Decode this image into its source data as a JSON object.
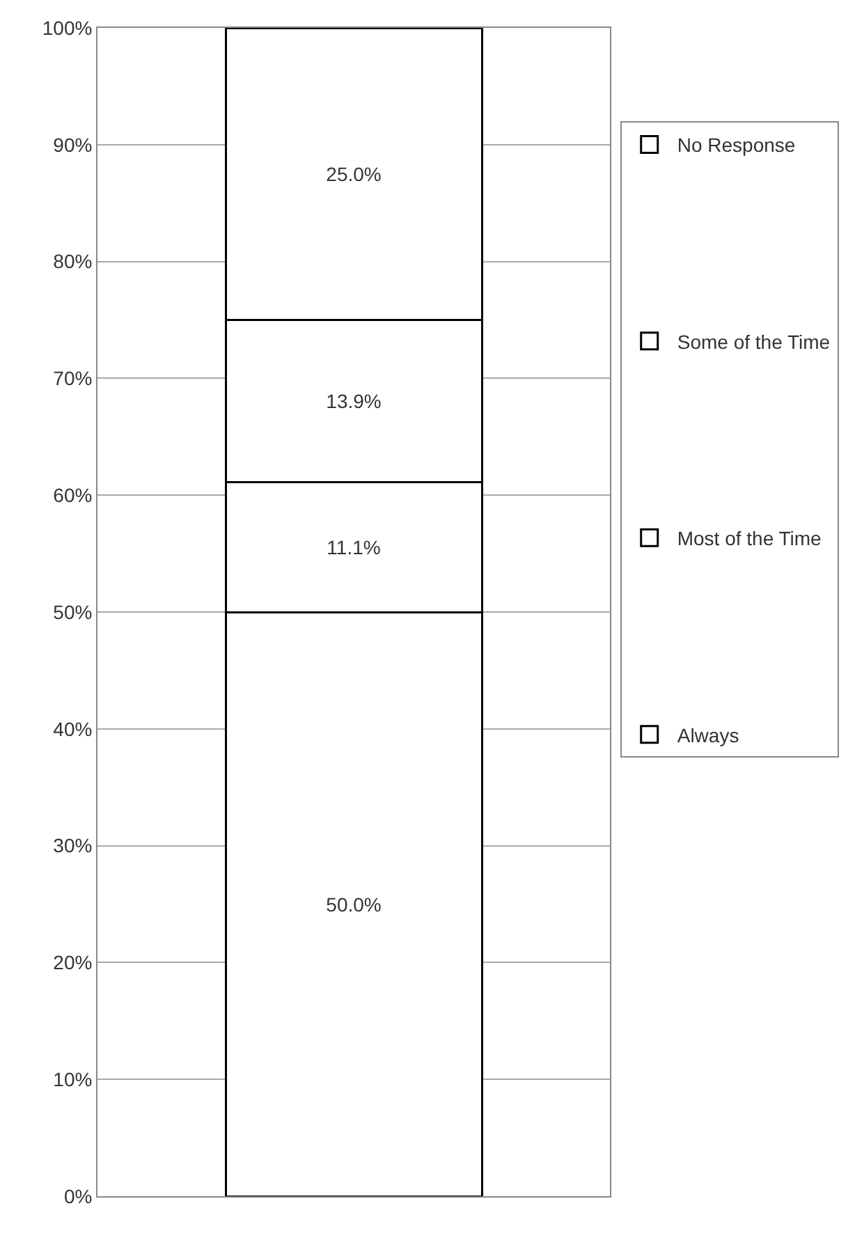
{
  "chart_data": {
    "type": "bar",
    "stacked": true,
    "categories": [
      null
    ],
    "series": [
      {
        "name": "Always",
        "color": "#ffffff",
        "values": [
          50.0
        ],
        "value_labels": [
          "50.0%"
        ]
      },
      {
        "name": "Most of the Time",
        "color": "#ffffff",
        "values": [
          11.1
        ],
        "value_labels": [
          "11.1%"
        ]
      },
      {
        "name": "Some of the Time",
        "color": "#ffffff",
        "values": [
          13.9
        ],
        "value_labels": [
          "13.9%"
        ]
      },
      {
        "name": "No Response",
        "color": "#ffffff",
        "values": [
          25.0
        ],
        "value_labels": [
          "25.0%"
        ]
      }
    ],
    "ylim": [
      0,
      100
    ],
    "yticks": [
      {
        "value": 0,
        "label": "0%"
      },
      {
        "value": 10,
        "label": "10%"
      },
      {
        "value": 20,
        "label": "20%"
      },
      {
        "value": 30,
        "label": "30%"
      },
      {
        "value": 40,
        "label": "40%"
      },
      {
        "value": 50,
        "label": "50%"
      },
      {
        "value": 60,
        "label": "60%"
      },
      {
        "value": 70,
        "label": "70%"
      },
      {
        "value": 80,
        "label": "80%"
      },
      {
        "value": 90,
        "label": "90%"
      },
      {
        "value": 100,
        "label": "100%"
      }
    ],
    "grid": "y",
    "legend": "right"
  }
}
